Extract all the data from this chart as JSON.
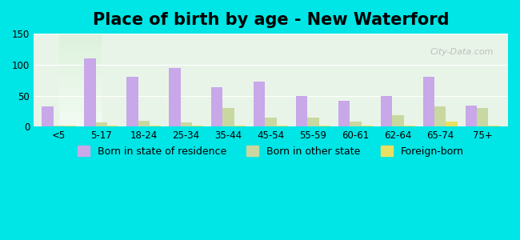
{
  "title": "Place of birth by age - New Waterford",
  "categories": [
    "<5",
    "5-17",
    "18-24",
    "25-34",
    "35-44",
    "45-54",
    "55-59",
    "60-61",
    "62-64",
    "65-74",
    "75+"
  ],
  "born_in_state": [
    33,
    110,
    80,
    95,
    63,
    73,
    50,
    41,
    49,
    81,
    34
  ],
  "born_other_state": [
    2,
    7,
    9,
    7,
    30,
    14,
    14,
    8,
    19,
    33,
    30
  ],
  "foreign_born": [
    2,
    2,
    2,
    2,
    2,
    2,
    2,
    2,
    2,
    8,
    2
  ],
  "bar_color_state": "#c8a8e8",
  "bar_color_other": "#c8d8a0",
  "bar_color_foreign": "#e8e060",
  "ylim": [
    0,
    150
  ],
  "yticks": [
    0,
    50,
    100,
    150
  ],
  "background_color": "#00e5e5",
  "plot_bg_color_top": "#e8f4e8",
  "plot_bg_color_bottom": "#f0f8f0",
  "legend_state": "Born in state of residence",
  "legend_other": "Born in other state",
  "legend_foreign": "Foreign-born",
  "bar_width": 0.27,
  "title_fontsize": 15,
  "tick_fontsize": 8.5,
  "legend_fontsize": 9
}
